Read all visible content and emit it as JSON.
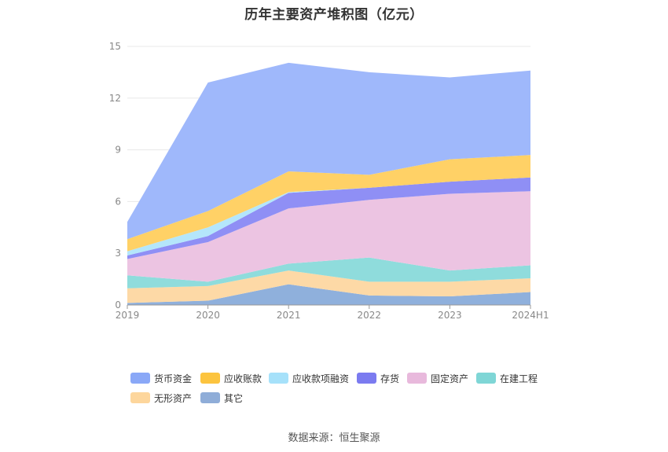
{
  "title": "历年主要资产堆积图（亿元）",
  "source": "数据来源：恒生聚源",
  "chart_data": {
    "type": "area",
    "stacked": true,
    "categories": [
      "2019",
      "2020",
      "2021",
      "2022",
      "2023",
      "2024H1"
    ],
    "yticks": [
      "0",
      "3",
      "6",
      "9",
      "12",
      "15"
    ],
    "ylim": [
      0,
      15
    ],
    "grid": true,
    "legend_position": "bottom",
    "series": [
      {
        "name": "其它",
        "color": "#8fb0dc",
        "values": [
          0.12,
          0.25,
          1.2,
          0.55,
          0.5,
          0.75
        ]
      },
      {
        "name": "无形资产",
        "color": "#fdd9a6",
        "values": [
          0.85,
          0.85,
          0.8,
          0.8,
          0.85,
          0.8
        ]
      },
      {
        "name": "在建工程",
        "color": "#8fdcdc",
        "values": [
          0.75,
          0.25,
          0.4,
          1.4,
          0.65,
          0.75
        ]
      },
      {
        "name": "固定资产",
        "color": "#ecc4e2",
        "values": [
          0.95,
          2.3,
          3.2,
          3.35,
          4.45,
          4.3
        ]
      },
      {
        "name": "存货",
        "color": "#8f8ff5",
        "values": [
          0.2,
          0.35,
          0.9,
          0.7,
          0.7,
          0.8
        ]
      },
      {
        "name": "应收款项融资",
        "color": "#b4e6fb",
        "values": [
          0.25,
          0.5,
          0.05,
          0.0,
          0.0,
          0.0
        ]
      },
      {
        "name": "应收账款",
        "color": "#ffd166",
        "values": [
          0.7,
          0.95,
          1.2,
          0.75,
          1.3,
          1.3
        ]
      },
      {
        "name": "货币资金",
        "color": "#9fb8fb",
        "values": [
          1.0,
          7.45,
          6.3,
          5.95,
          4.75,
          4.9
        ]
      }
    ]
  },
  "legend": [
    {
      "name": "货币资金",
      "color": "#8aa8f7"
    },
    {
      "name": "应收账款",
      "color": "#fcc43f"
    },
    {
      "name": "应收款项融资",
      "color": "#a6e1fa"
    },
    {
      "name": "存货",
      "color": "#7b7bf0"
    },
    {
      "name": "固定资产",
      "color": "#e8b9dc"
    },
    {
      "name": "在建工程",
      "color": "#7fd6d6"
    },
    {
      "name": "无形资产",
      "color": "#fdd69c"
    },
    {
      "name": "其它",
      "color": "#8fadd8"
    }
  ]
}
